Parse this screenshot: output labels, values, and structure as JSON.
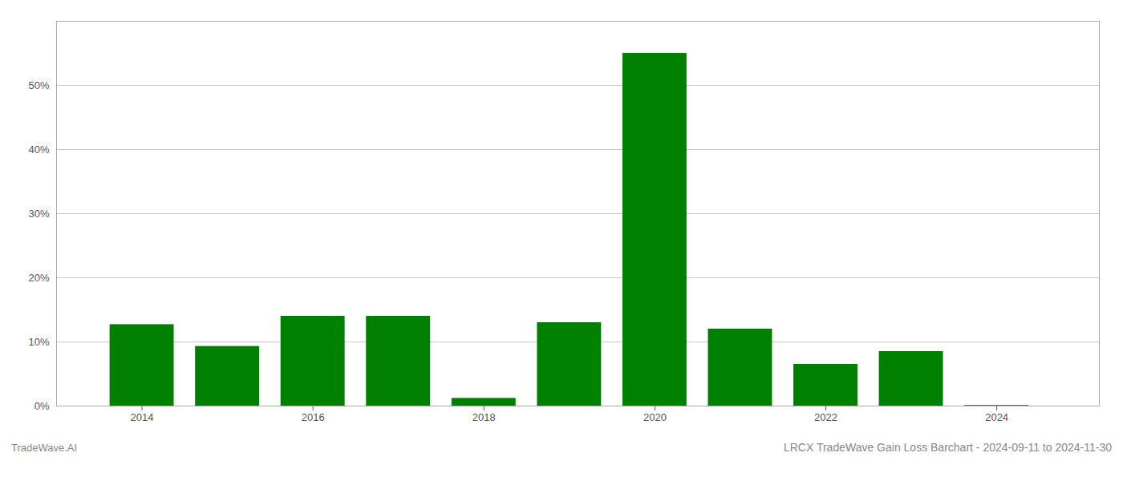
{
  "chart_data": {
    "type": "bar",
    "title": "LRCX TradeWave Gain Loss Barchart - 2024-09-11 to 2024-11-30",
    "annotations": [
      "TradeWave.AI"
    ],
    "x": [
      2014,
      2015,
      2016,
      2017,
      2018,
      2019,
      2020,
      2021,
      2022,
      2023,
      2024
    ],
    "values": [
      0.127,
      0.093,
      0.14,
      0.14,
      0.012,
      0.13,
      0.55,
      0.12,
      0.065,
      0.085,
      0.001
    ],
    "color": "#008000",
    "xlim": [
      2013.0,
      2025.2
    ],
    "xticks": [
      2014,
      2016,
      2018,
      2020,
      2022,
      2024
    ],
    "ylim": [
      0,
      0.6
    ],
    "yticks": [
      {
        "value": 0.0,
        "label": "0%"
      },
      {
        "value": 0.1,
        "label": "10%"
      },
      {
        "value": 0.2,
        "label": "20%"
      },
      {
        "value": 0.3,
        "label": "30%"
      },
      {
        "value": 0.4,
        "label": "40%"
      },
      {
        "value": 0.5,
        "label": "50%"
      }
    ],
    "grid": true
  }
}
